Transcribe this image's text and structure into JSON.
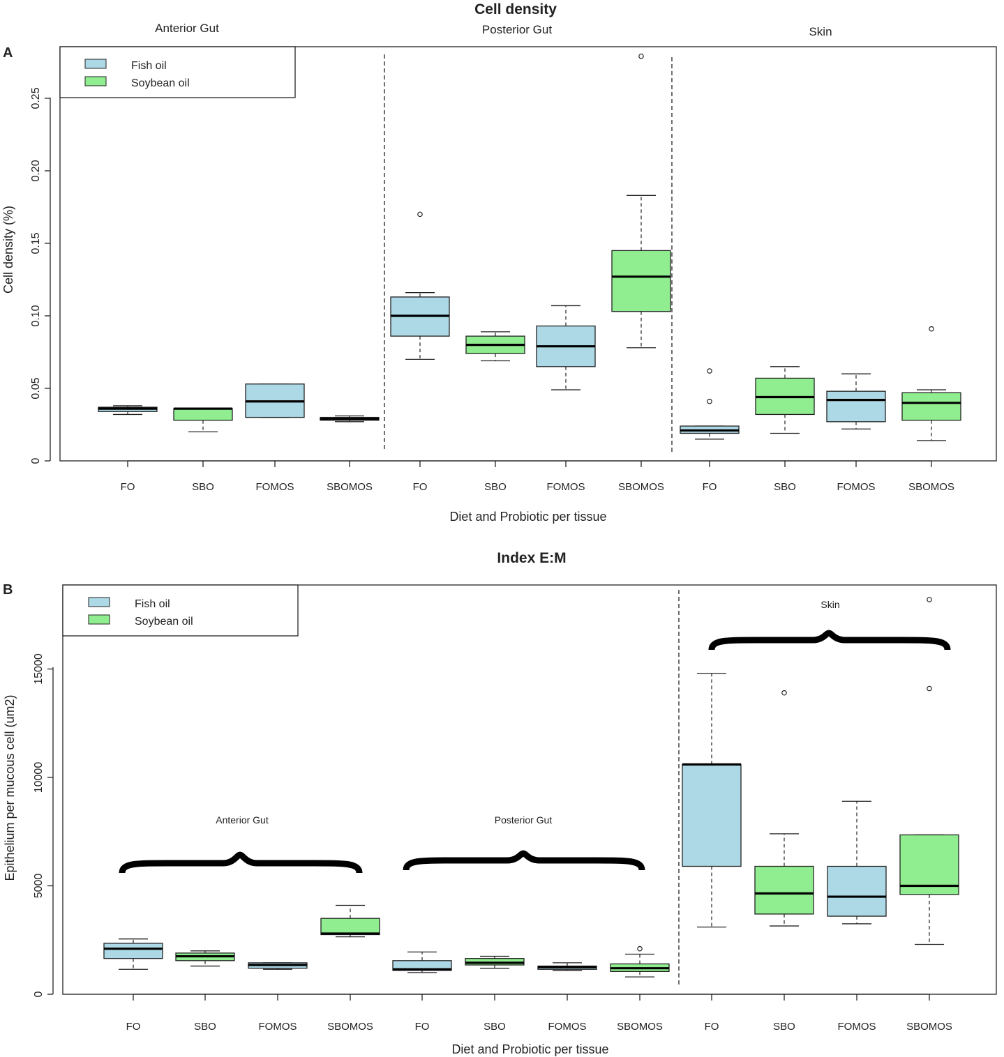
{
  "chart_data": [
    {
      "type": "box",
      "panel": "A",
      "title": "Cell density",
      "xlabel": "Diet and Probiotic per tissue",
      "ylabel": "Cell density (%)",
      "ylim": [
        0,
        0.28
      ],
      "yticks": [
        0,
        0.05,
        0.1,
        0.15,
        0.2,
        0.25
      ],
      "ytick_labels": [
        "0",
        "0.05",
        "0.10",
        "0.15",
        "0.20",
        "0.25"
      ],
      "legend": [
        {
          "label": "Fish oil",
          "color": "#add8e6"
        },
        {
          "label": "Soybean oil",
          "color": "#90ee90"
        }
      ],
      "groups": [
        "Anterior Gut",
        "Posterior Gut",
        "Skin"
      ],
      "categories": [
        "FO",
        "SBO",
        "FOMOS",
        "SBOMOS",
        "FO",
        "SBO",
        "FOMOS",
        "SBOMOS",
        "FO",
        "SBO",
        "FOMOS",
        "SBOMOS"
      ],
      "boxes": [
        {
          "group": "Anterior Gut",
          "label": "FO",
          "oil": "Fish oil",
          "min": 0.032,
          "q1": 0.034,
          "median": 0.036,
          "q3": 0.037,
          "max": 0.038,
          "outliers": []
        },
        {
          "group": "Anterior Gut",
          "label": "SBO",
          "oil": "Soybean oil",
          "min": 0.02,
          "q1": 0.028,
          "median": 0.036,
          "q3": 0.036,
          "max": 0.036,
          "outliers": []
        },
        {
          "group": "Anterior Gut",
          "label": "FOMOS",
          "oil": "Fish oil",
          "min": 0.03,
          "q1": 0.03,
          "median": 0.041,
          "q3": 0.053,
          "max": 0.053,
          "outliers": []
        },
        {
          "group": "Anterior Gut",
          "label": "SBOMOS",
          "oil": "Soybean oil",
          "min": 0.027,
          "q1": 0.028,
          "median": 0.029,
          "q3": 0.03,
          "max": 0.031,
          "outliers": []
        },
        {
          "group": "Posterior Gut",
          "label": "FO",
          "oil": "Fish oil",
          "min": 0.07,
          "q1": 0.086,
          "median": 0.1,
          "q3": 0.113,
          "max": 0.116,
          "outliers": [
            0.17
          ]
        },
        {
          "group": "Posterior Gut",
          "label": "SBO",
          "oil": "Soybean oil",
          "min": 0.069,
          "q1": 0.074,
          "median": 0.08,
          "q3": 0.086,
          "max": 0.089,
          "outliers": []
        },
        {
          "group": "Posterior Gut",
          "label": "FOMOS",
          "oil": "Fish oil",
          "min": 0.049,
          "q1": 0.065,
          "median": 0.079,
          "q3": 0.093,
          "max": 0.107,
          "outliers": []
        },
        {
          "group": "Posterior Gut",
          "label": "SBOMOS",
          "oil": "Soybean oil",
          "min": 0.078,
          "q1": 0.103,
          "median": 0.127,
          "q3": 0.145,
          "max": 0.183,
          "outliers": [
            0.279
          ]
        },
        {
          "group": "Skin",
          "label": "FO",
          "oil": "Fish oil",
          "min": 0.015,
          "q1": 0.019,
          "median": 0.021,
          "q3": 0.024,
          "max": 0.024,
          "outliers": [
            0.041,
            0.062
          ]
        },
        {
          "group": "Skin",
          "label": "SBO",
          "oil": "Soybean oil",
          "min": 0.019,
          "q1": 0.032,
          "median": 0.044,
          "q3": 0.057,
          "max": 0.065,
          "outliers": []
        },
        {
          "group": "Skin",
          "label": "FOMOS",
          "oil": "Fish oil",
          "min": 0.022,
          "q1": 0.027,
          "median": 0.042,
          "q3": 0.048,
          "max": 0.06,
          "outliers": []
        },
        {
          "group": "Skin",
          "label": "SBOMOS",
          "oil": "Soybean oil",
          "min": 0.014,
          "q1": 0.028,
          "median": 0.04,
          "q3": 0.047,
          "max": 0.049,
          "outliers": [
            0.091
          ]
        }
      ]
    },
    {
      "type": "box",
      "panel": "B",
      "title": "Index E:M",
      "xlabel": "Diet and Probiotic per tissue",
      "ylabel": "Epithelium per mucous cell (um2)",
      "ylim": [
        0,
        18500
      ],
      "yticks": [
        0,
        5000,
        10000,
        15000
      ],
      "ytick_labels": [
        "0",
        "5000",
        "10000",
        "15000"
      ],
      "legend": [
        {
          "label": "Fish oil",
          "color": "#add8e6"
        },
        {
          "label": "Soybean oil",
          "color": "#90ee90"
        }
      ],
      "groups": [
        "Anterior Gut",
        "Posterior Gut",
        "Skin"
      ],
      "categories": [
        "FO",
        "SBO",
        "FOMOS",
        "SBOMOS",
        "FO",
        "SBO",
        "FOMOS",
        "SBOMOS",
        "FO",
        "SBO",
        "FOMOS",
        "SBOMOS"
      ],
      "boxes": [
        {
          "group": "Anterior Gut",
          "label": "FO",
          "oil": "Fish oil",
          "min": 1150,
          "q1": 1650,
          "median": 2100,
          "q3": 2350,
          "max": 2550,
          "outliers": []
        },
        {
          "group": "Anterior Gut",
          "label": "SBO",
          "oil": "Soybean oil",
          "min": 1300,
          "q1": 1550,
          "median": 1750,
          "q3": 1900,
          "max": 2000,
          "outliers": []
        },
        {
          "group": "Anterior Gut",
          "label": "FOMOS",
          "oil": "Fish oil",
          "min": 1150,
          "q1": 1200,
          "median": 1350,
          "q3": 1450,
          "max": 1450,
          "outliers": []
        },
        {
          "group": "Anterior Gut",
          "label": "SBOMOS",
          "oil": "Soybean oil",
          "min": 2650,
          "q1": 2750,
          "median": 2800,
          "q3": 3500,
          "max": 4100,
          "outliers": []
        },
        {
          "group": "Posterior Gut",
          "label": "FO",
          "oil": "Fish oil",
          "min": 1000,
          "q1": 1100,
          "median": 1150,
          "q3": 1550,
          "max": 1950,
          "outliers": []
        },
        {
          "group": "Posterior Gut",
          "label": "SBO",
          "oil": "Soybean oil",
          "min": 1200,
          "q1": 1350,
          "median": 1450,
          "q3": 1650,
          "max": 1750,
          "outliers": []
        },
        {
          "group": "Posterior Gut",
          "label": "FOMOS",
          "oil": "Fish oil",
          "min": 1100,
          "q1": 1150,
          "median": 1250,
          "q3": 1300,
          "max": 1450,
          "outliers": []
        },
        {
          "group": "Posterior Gut",
          "label": "SBOMOS",
          "oil": "Soybean oil",
          "min": 800,
          "q1": 1050,
          "median": 1200,
          "q3": 1400,
          "max": 1850,
          "outliers": [
            2100
          ]
        },
        {
          "group": "Skin",
          "label": "FO",
          "oil": "Fish oil",
          "min": 3100,
          "q1": 5900,
          "median": 10600,
          "q3": 10600,
          "max": 14800,
          "outliers": []
        },
        {
          "group": "Skin",
          "label": "SBO",
          "oil": "Soybean oil",
          "min": 3150,
          "q1": 3700,
          "median": 4650,
          "q3": 5900,
          "max": 7400,
          "outliers": [
            13900
          ]
        },
        {
          "group": "Skin",
          "label": "FOMOS",
          "oil": "Fish oil",
          "min": 3250,
          "q1": 3600,
          "median": 4500,
          "q3": 5900,
          "max": 8900,
          "outliers": []
        },
        {
          "group": "Skin",
          "label": "SBOMOS",
          "oil": "Soybean oil",
          "min": 2300,
          "q1": 4600,
          "median": 5000,
          "q3": 7350,
          "max": 7350,
          "outliers": [
            14100,
            18200
          ]
        }
      ]
    }
  ]
}
